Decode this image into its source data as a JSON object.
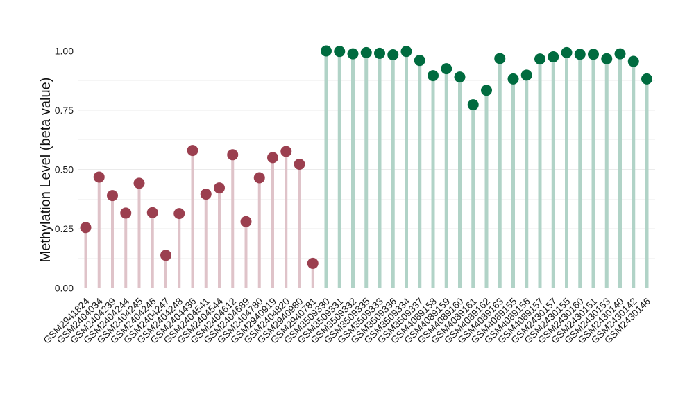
{
  "chart_data": {
    "type": "lollipop",
    "title": "",
    "xlabel": "",
    "ylabel": "Methylation Level (beta value)",
    "ylim": [
      0,
      1
    ],
    "yticks": [
      "0.00",
      "0.25",
      "0.50",
      "0.75",
      "1.00"
    ],
    "grid": true,
    "legend": "none",
    "colors": {
      "group1_point": "#9b3f4f",
      "group1_stem": "#dfc3c9",
      "group2_point": "#006b3f",
      "group2_stem": "#b1d3c7",
      "grid": "#ebebeb"
    },
    "points": [
      {
        "label": "GSM2941824",
        "value": 0.255,
        "group": 1
      },
      {
        "label": "GSM2404034",
        "value": 0.468,
        "group": 1
      },
      {
        "label": "GSM2404239",
        "value": 0.39,
        "group": 1
      },
      {
        "label": "GSM2404244",
        "value": 0.316,
        "group": 1
      },
      {
        "label": "GSM2404245",
        "value": 0.442,
        "group": 1
      },
      {
        "label": "GSM2404246",
        "value": 0.318,
        "group": 1
      },
      {
        "label": "GSM2404247",
        "value": 0.138,
        "group": 1
      },
      {
        "label": "GSM2404248",
        "value": 0.314,
        "group": 1
      },
      {
        "label": "GSM2404436",
        "value": 0.58,
        "group": 1
      },
      {
        "label": "GSM2404541",
        "value": 0.396,
        "group": 1
      },
      {
        "label": "GSM2404544",
        "value": 0.422,
        "group": 1
      },
      {
        "label": "GSM2404612",
        "value": 0.562,
        "group": 1
      },
      {
        "label": "GSM2404689",
        "value": 0.28,
        "group": 1
      },
      {
        "label": "GSM2404780",
        "value": 0.465,
        "group": 1
      },
      {
        "label": "GSM2940919",
        "value": 0.55,
        "group": 1
      },
      {
        "label": "GSM2404820",
        "value": 0.576,
        "group": 1
      },
      {
        "label": "GSM2940980",
        "value": 0.522,
        "group": 1
      },
      {
        "label": "GSM2940781",
        "value": 0.104,
        "group": 1
      },
      {
        "label": "GSM3509330",
        "value": 1.0,
        "group": 2
      },
      {
        "label": "GSM3509331",
        "value": 0.998,
        "group": 2
      },
      {
        "label": "GSM3509332",
        "value": 0.988,
        "group": 2
      },
      {
        "label": "GSM3509335",
        "value": 0.993,
        "group": 2
      },
      {
        "label": "GSM3509333",
        "value": 0.99,
        "group": 2
      },
      {
        "label": "GSM3509336",
        "value": 0.984,
        "group": 2
      },
      {
        "label": "GSM3509334",
        "value": 0.998,
        "group": 2
      },
      {
        "label": "GSM3509337",
        "value": 0.96,
        "group": 2
      },
      {
        "label": "GSM4089158",
        "value": 0.896,
        "group": 2
      },
      {
        "label": "GSM4089159",
        "value": 0.925,
        "group": 2
      },
      {
        "label": "GSM4089160",
        "value": 0.89,
        "group": 2
      },
      {
        "label": "GSM4089161",
        "value": 0.773,
        "group": 2
      },
      {
        "label": "GSM4089162",
        "value": 0.834,
        "group": 2
      },
      {
        "label": "GSM4089163",
        "value": 0.968,
        "group": 2
      },
      {
        "label": "GSM4089155",
        "value": 0.882,
        "group": 2
      },
      {
        "label": "GSM4089156",
        "value": 0.898,
        "group": 2
      },
      {
        "label": "GSM4089157",
        "value": 0.966,
        "group": 2
      },
      {
        "label": "GSM2430157",
        "value": 0.975,
        "group": 2
      },
      {
        "label": "GSM2430155",
        "value": 0.993,
        "group": 2
      },
      {
        "label": "GSM2430160",
        "value": 0.986,
        "group": 2
      },
      {
        "label": "GSM2430151",
        "value": 0.986,
        "group": 2
      },
      {
        "label": "GSM2430153",
        "value": 0.967,
        "group": 2
      },
      {
        "label": "GSM2430140",
        "value": 0.988,
        "group": 2
      },
      {
        "label": "GSM2430142",
        "value": 0.956,
        "group": 2
      },
      {
        "label": "GSM2430146",
        "value": 0.882,
        "group": 2
      }
    ]
  }
}
